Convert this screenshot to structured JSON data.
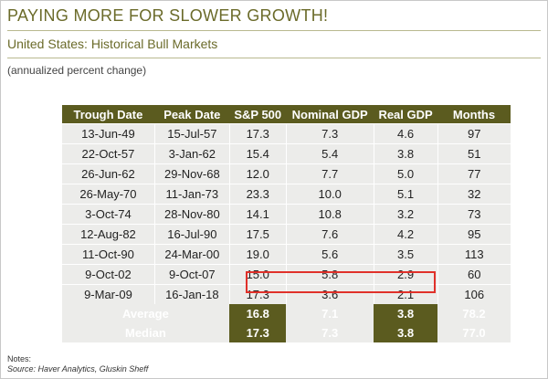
{
  "header": {
    "title": "PAYING MORE FOR SLOWER GROWTH!",
    "subtitle": "United States: Historical Bull Markets",
    "caption": "(annualized percent change)"
  },
  "table": {
    "columns": [
      "Trough Date",
      "Peak Date",
      "S&P 500",
      "Nominal GDP",
      "Real GDP",
      "Months"
    ],
    "rows": [
      [
        "13-Jun-49",
        "15-Jul-57",
        "17.3",
        "7.3",
        "4.6",
        "97"
      ],
      [
        "22-Oct-57",
        "3-Jan-62",
        "15.4",
        "5.4",
        "3.8",
        "51"
      ],
      [
        "26-Jun-62",
        "29-Nov-68",
        "12.0",
        "7.7",
        "5.0",
        "77"
      ],
      [
        "26-May-70",
        "11-Jan-73",
        "23.3",
        "10.0",
        "5.1",
        "32"
      ],
      [
        "3-Oct-74",
        "28-Nov-80",
        "14.1",
        "10.8",
        "3.2",
        "73"
      ],
      [
        "12-Aug-82",
        "16-Jul-90",
        "17.5",
        "7.6",
        "4.2",
        "95"
      ],
      [
        "11-Oct-90",
        "24-Mar-00",
        "19.0",
        "5.6",
        "3.5",
        "113"
      ],
      [
        "9-Oct-02",
        "9-Oct-07",
        "15.0",
        "5.8",
        "2.9",
        "60"
      ],
      [
        "9-Mar-09",
        "16-Jan-18",
        "17.3",
        "3.6",
        "2.1",
        "106"
      ]
    ],
    "summary": [
      {
        "label": "Average",
        "values": [
          "16.8",
          "7.1",
          "3.8",
          "78.2"
        ]
      },
      {
        "label": "Median",
        "values": [
          "17.3",
          "7.3",
          "3.8",
          "77.0"
        ]
      }
    ]
  },
  "notes": {
    "label": "Notes:",
    "source": "Source: Haver Analytics, Gluskin Sheff"
  },
  "colors": {
    "accent": "#5b5b1f",
    "highlight": "#e0312a"
  }
}
